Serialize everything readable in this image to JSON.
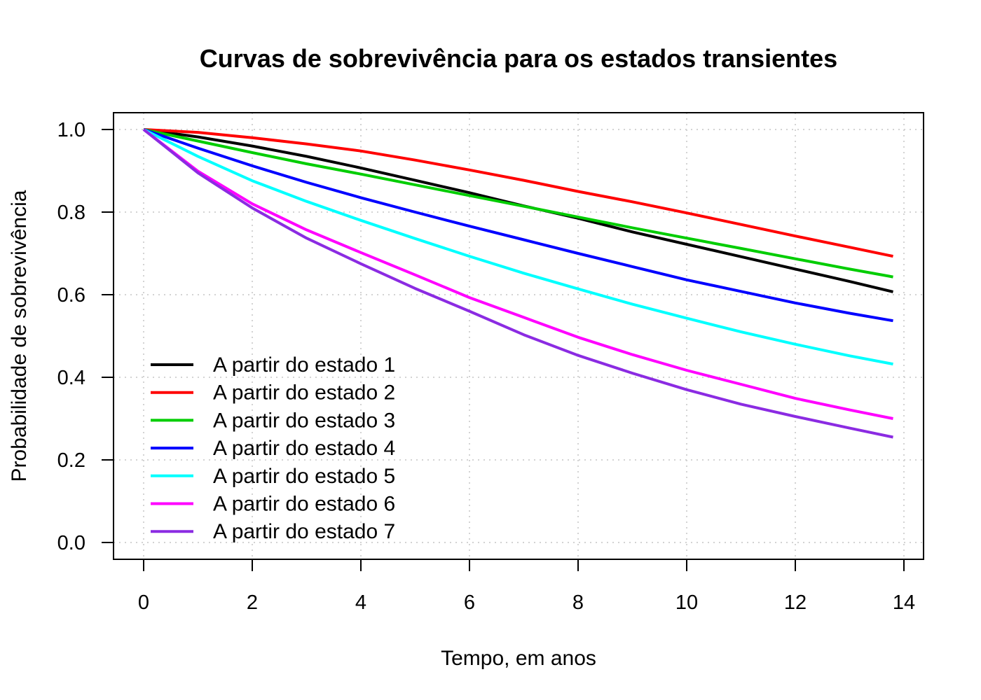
{
  "chart_data": {
    "type": "line",
    "title": "Curvas de sobrevivência para os estados transientes",
    "xlabel": "Tempo, em anos",
    "ylabel": "Probabilidade de sobrevivência",
    "xlim": [
      0,
      14
    ],
    "ylim": [
      0,
      1
    ],
    "xticks": [
      "0",
      "2",
      "4",
      "6",
      "8",
      "10",
      "12",
      "14"
    ],
    "yticks": [
      "0.0",
      "0.2",
      "0.4",
      "0.6",
      "0.8",
      "1.0"
    ],
    "grid": true,
    "legend_position": "bottom-left",
    "x": [
      0,
      1,
      2,
      3,
      4,
      5,
      6,
      7,
      8,
      9,
      10,
      11,
      12,
      13,
      13.8
    ],
    "series": [
      {
        "name": "A partir do estado 1",
        "color": "#000000",
        "values": [
          1.0,
          0.982,
          0.96,
          0.935,
          0.907,
          0.877,
          0.847,
          0.815,
          0.785,
          0.752,
          0.722,
          0.692,
          0.662,
          0.632,
          0.607
        ]
      },
      {
        "name": "A partir do estado 2",
        "color": "#ff0000",
        "values": [
          1.0,
          0.993,
          0.98,
          0.965,
          0.948,
          0.926,
          0.902,
          0.877,
          0.85,
          0.825,
          0.798,
          0.77,
          0.742,
          0.715,
          0.693
        ]
      },
      {
        "name": "A partir do estado 3",
        "color": "#00cd00",
        "values": [
          1.0,
          0.972,
          0.944,
          0.917,
          0.892,
          0.866,
          0.84,
          0.814,
          0.788,
          0.762,
          0.737,
          0.712,
          0.687,
          0.662,
          0.643
        ]
      },
      {
        "name": "A partir do estado 4",
        "color": "#0000ff",
        "values": [
          1.0,
          0.955,
          0.912,
          0.872,
          0.835,
          0.8,
          0.766,
          0.733,
          0.7,
          0.668,
          0.636,
          0.608,
          0.58,
          0.555,
          0.537
        ]
      },
      {
        "name": "A partir do estado 5",
        "color": "#00ffff",
        "values": [
          1.0,
          0.935,
          0.876,
          0.826,
          0.78,
          0.736,
          0.693,
          0.652,
          0.614,
          0.577,
          0.543,
          0.51,
          0.48,
          0.452,
          0.432
        ]
      },
      {
        "name": "A partir do estado 6",
        "color": "#ff00ff",
        "values": [
          1.0,
          0.899,
          0.82,
          0.757,
          0.702,
          0.648,
          0.593,
          0.545,
          0.497,
          0.455,
          0.417,
          0.383,
          0.349,
          0.321,
          0.3
        ]
      },
      {
        "name": "A partir do estado 7",
        "color": "#8b2be2",
        "values": [
          1.0,
          0.895,
          0.81,
          0.737,
          0.675,
          0.615,
          0.56,
          0.503,
          0.453,
          0.41,
          0.37,
          0.335,
          0.305,
          0.277,
          0.255
        ]
      }
    ]
  }
}
